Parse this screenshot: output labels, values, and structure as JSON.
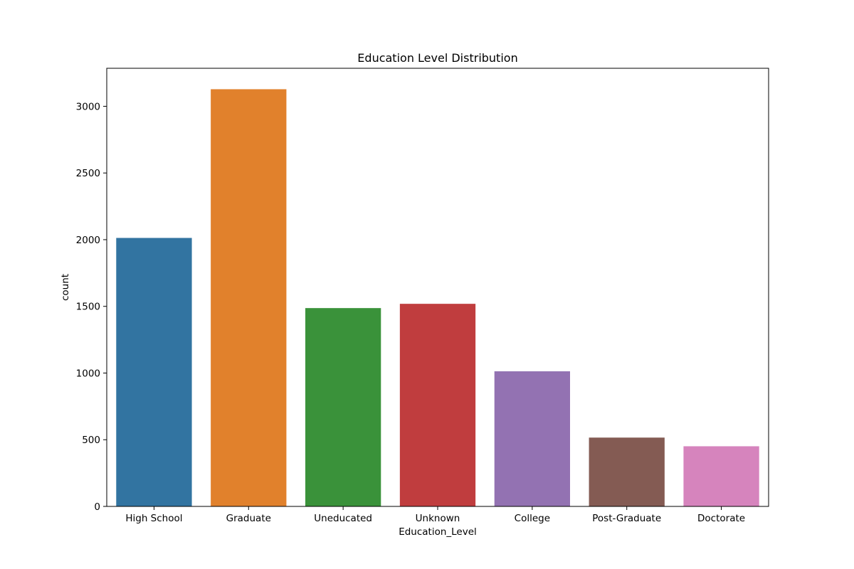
{
  "chart_data": {
    "type": "bar",
    "title": "Education Level Distribution",
    "xlabel": "Education_Level",
    "ylabel": "count",
    "categories": [
      "High School",
      "Graduate",
      "Uneducated",
      "Unknown",
      "College",
      "Post-Graduate",
      "Doctorate"
    ],
    "values": [
      2013,
      3128,
      1487,
      1519,
      1013,
      516,
      451
    ],
    "colors": [
      "#3274a1",
      "#e1812c",
      "#3a923a",
      "#c03d3e",
      "#9372b2",
      "#845b53",
      "#d684bd"
    ],
    "ylim": [
      0,
      3285
    ],
    "yticks": [
      0,
      500,
      1000,
      1500,
      2000,
      2500,
      3000
    ],
    "grid": false,
    "legend": "none"
  }
}
